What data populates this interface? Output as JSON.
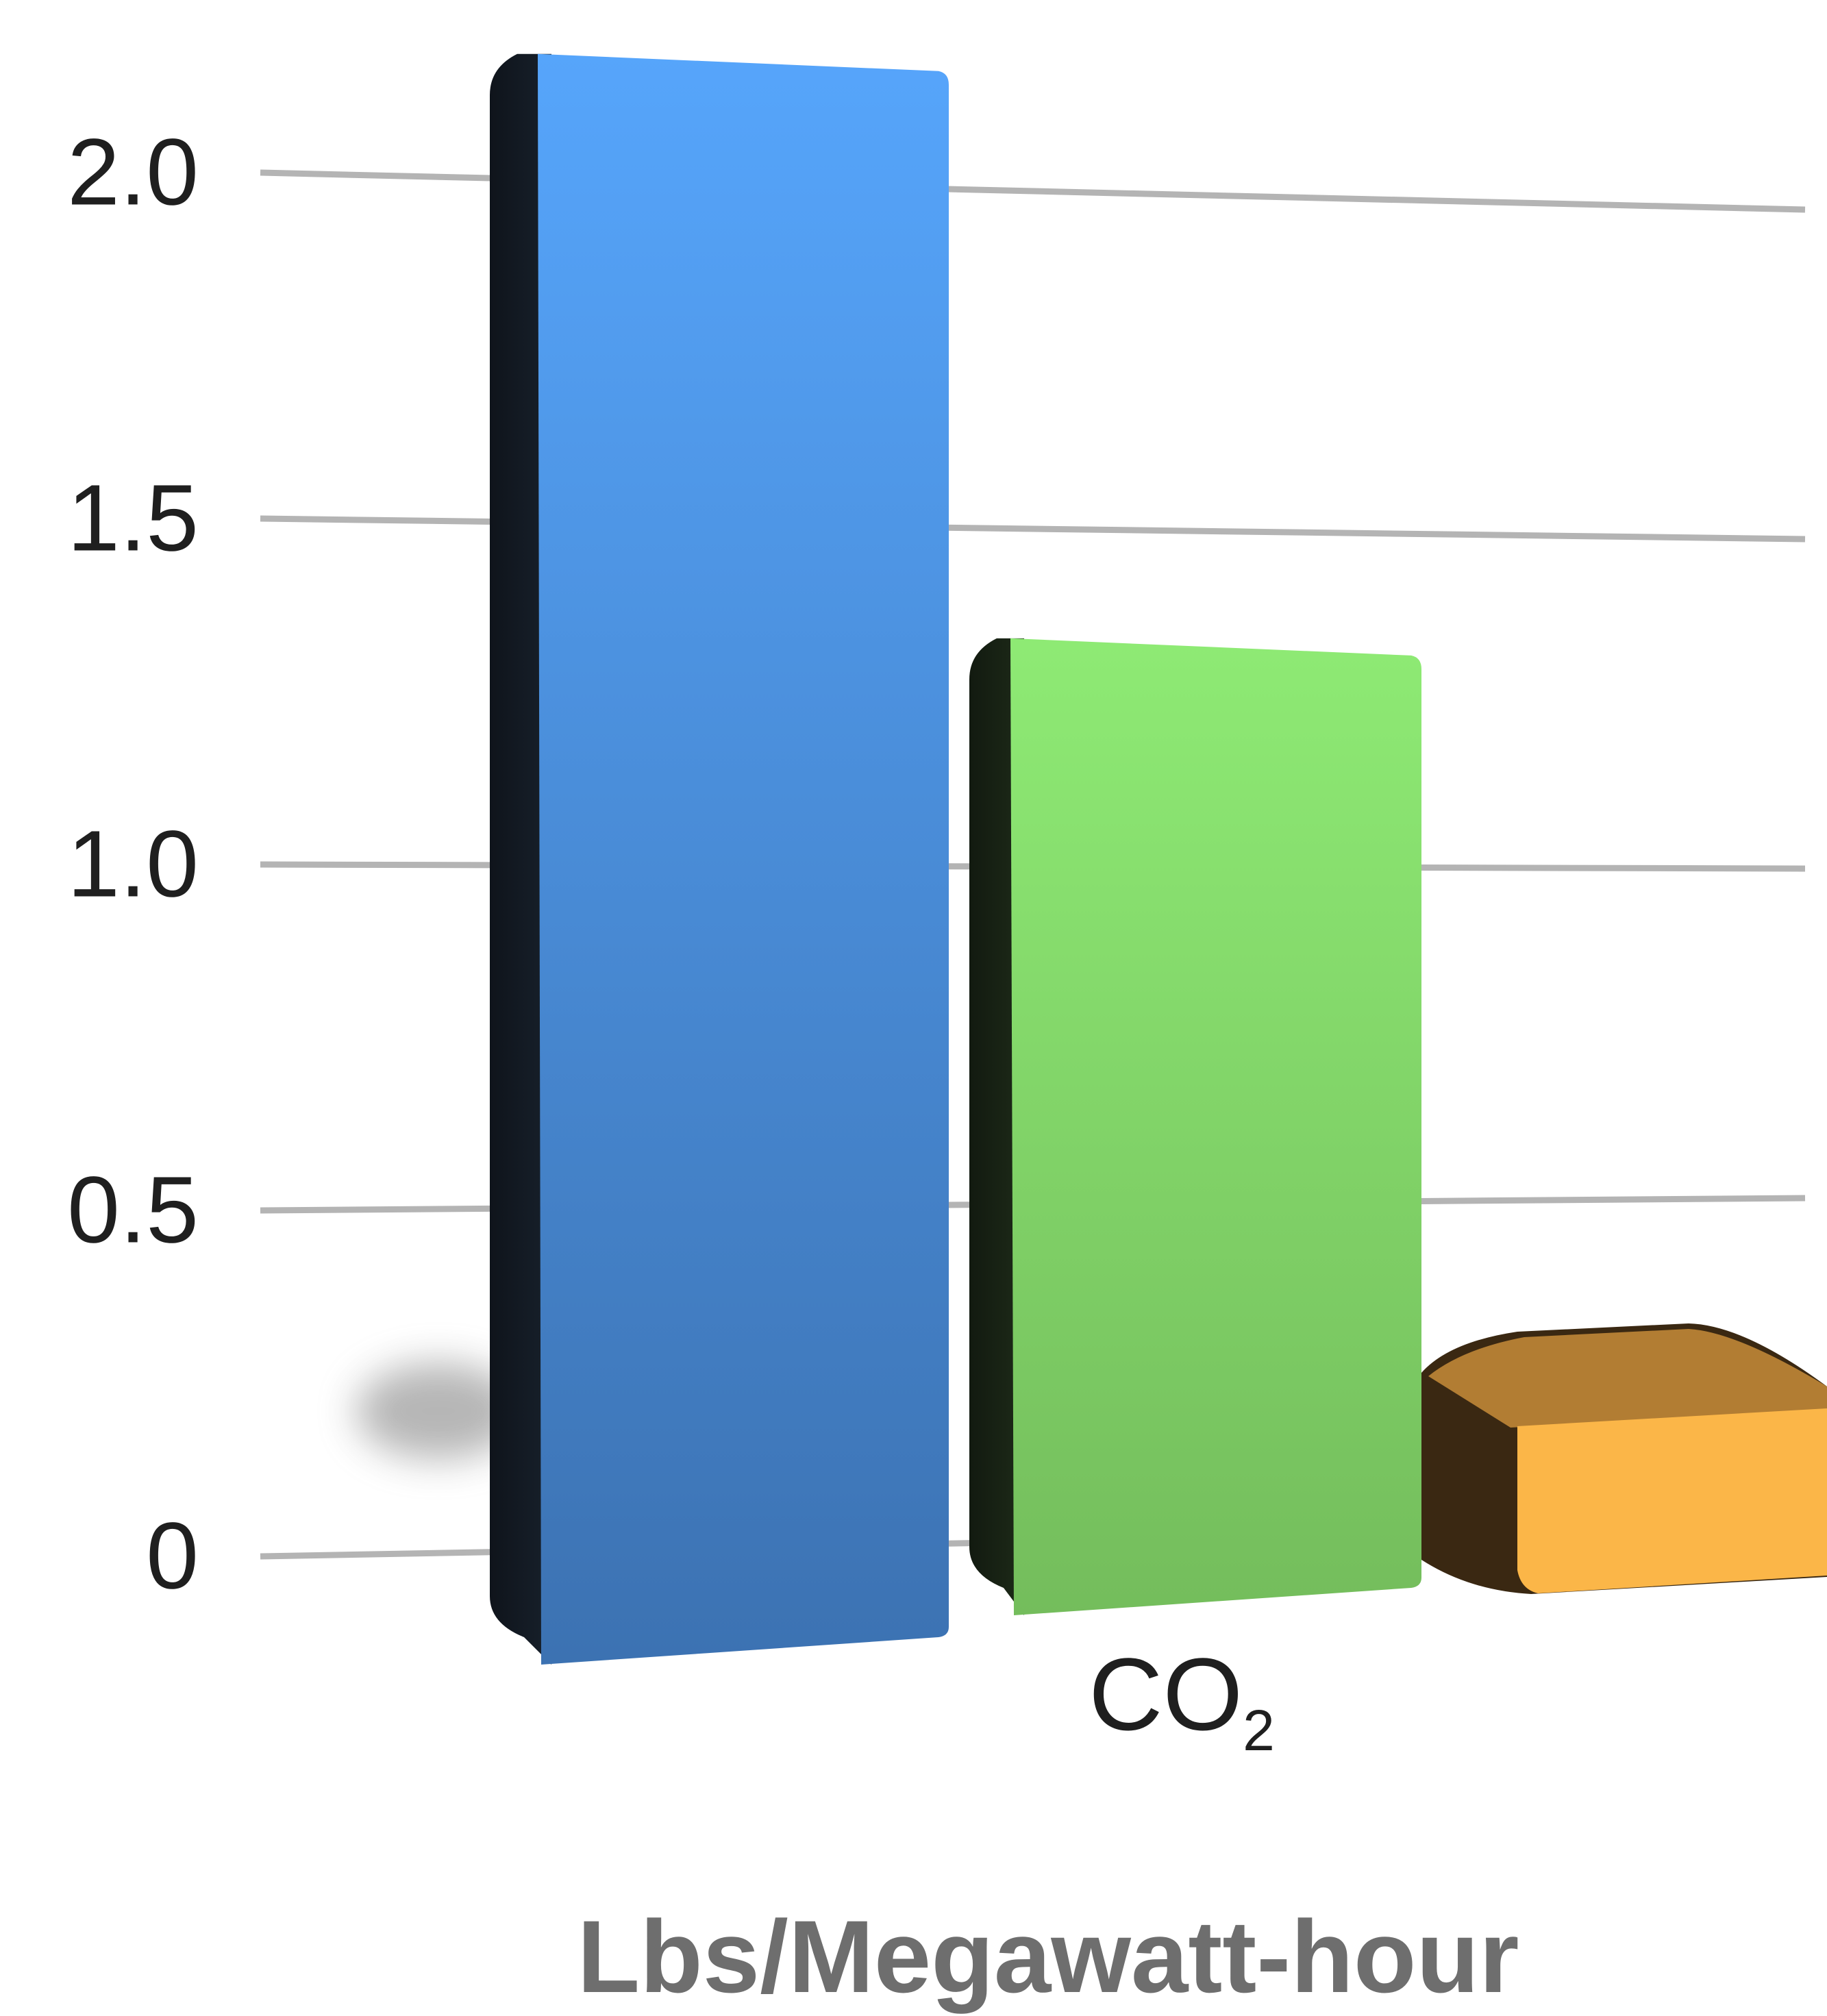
{
  "chart_data": {
    "type": "bar",
    "style": "3d",
    "categories": [
      "CO2"
    ],
    "category_label_main": "CO",
    "category_label_sub": "2",
    "series": [
      {
        "values": [
          2.18
        ],
        "color": "#4a8ad8"
      },
      {
        "values": [
          1.33
        ],
        "color": "#7ec863"
      },
      {
        "values": [
          0.28
        ],
        "color": "#f5a93c"
      }
    ],
    "ylabel": "Lbs/Megawatt-hour",
    "ylim": [
      0,
      2.0
    ],
    "yticks": [
      "0",
      "0.5",
      "1.0",
      "1.5",
      "2.0"
    ],
    "grid": true
  }
}
